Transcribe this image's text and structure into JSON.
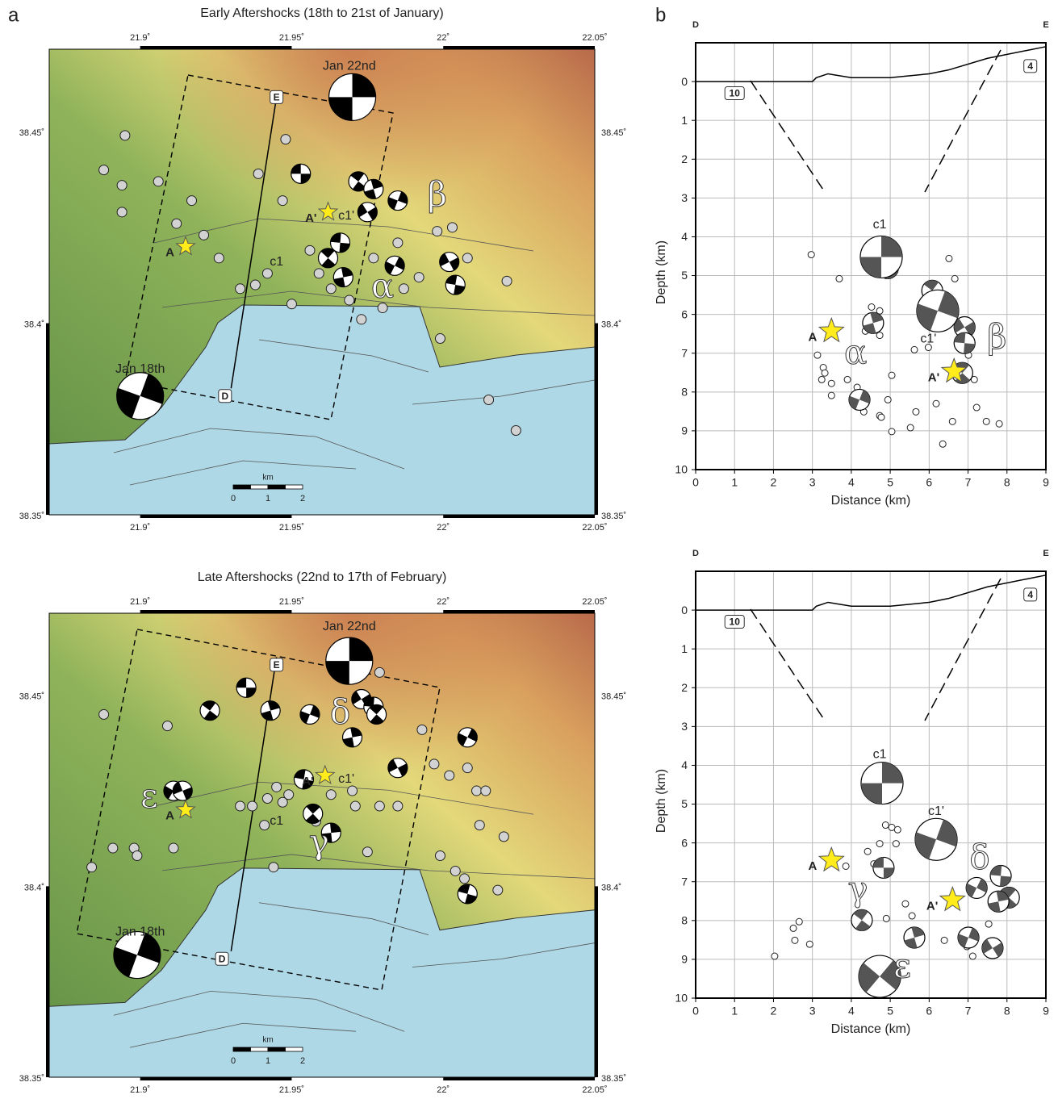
{
  "panels": [
    "a",
    "b"
  ],
  "chart_data": [
    {
      "type": "map",
      "title": "Early Aftershocks (18th to 21st of January)",
      "xlim": [
        21.87,
        22.05
      ],
      "ylim": [
        38.35,
        38.4715
      ],
      "xticks": [
        {
          "value": 21.9,
          "label": "21.9˚"
        },
        {
          "value": 21.95,
          "label": "21.95˚"
        },
        {
          "value": 22,
          "label": "22˚"
        },
        {
          "value": 22.05,
          "label": "22.05˚"
        }
      ],
      "yticks": [
        {
          "value": 38.35,
          "label": "38.35˚"
        },
        {
          "value": 38.4,
          "label": "38.4˚"
        },
        {
          "value": 38.45,
          "label": "38.45˚"
        }
      ],
      "points": {
        "x": [
          21.895,
          21.888,
          21.894,
          21.894,
          21.906,
          21.917,
          21.912,
          21.921,
          21.926,
          21.933,
          21.939,
          21.948,
          21.947,
          21.938,
          21.942,
          21.956,
          21.959,
          21.963,
          21.95,
          21.969,
          21.973,
          21.98,
          21.987,
          21.992,
          21.998,
          22.003,
          22.008,
          21.999,
          22.021,
          22.015,
          22.024,
          21.977,
          21.985
        ],
        "y": [
          38.449,
          38.44,
          38.436,
          38.429,
          38.437,
          38.432,
          38.426,
          38.423,
          38.417,
          38.409,
          38.439,
          38.448,
          38.432,
          38.41,
          38.413,
          38.419,
          38.413,
          38.409,
          38.405,
          38.406,
          38.401,
          38.404,
          38.409,
          38.412,
          38.424,
          38.425,
          38.417,
          38.396,
          38.411,
          38.38,
          38.372,
          38.417,
          38.421
        ]
      },
      "large_mechanisms": {
        "x": [
          21.97,
          21.9
        ],
        "y": [
          38.459,
          38.381
        ]
      },
      "mechanisms": {
        "x": [
          21.953,
          21.972,
          21.977,
          21.985,
          21.975,
          21.966,
          21.962,
          21.967,
          21.984,
          22.002,
          22.004
        ],
        "y": [
          38.439,
          38.437,
          38.435,
          38.432,
          38.429,
          38.421,
          38.417,
          38.412,
          38.415,
          38.416,
          38.41
        ]
      },
      "profile": {
        "x": [
          21.945,
          21.93
        ],
        "y": [
          38.459,
          38.383
        ]
      },
      "labels": [
        {
          "text": "Jan 22nd",
          "x": 21.969,
          "y": 38.467
        },
        {
          "text": "Jan 18th",
          "x": 21.9,
          "y": 38.388
        },
        {
          "text": "c1",
          "x": 21.945,
          "y": 38.416
        },
        {
          "text": "c1'",
          "x": 21.968,
          "y": 38.428
        }
      ],
      "greek": [
        {
          "text": "α",
          "x": 21.98,
          "y": 38.409
        },
        {
          "text": "β",
          "x": 21.998,
          "y": 38.433
        }
      ],
      "boxes": [
        {
          "text": "E",
          "x": 21.945,
          "y": 38.459
        },
        {
          "text": "D",
          "x": 21.928,
          "y": 38.381
        }
      ],
      "stars": [
        {
          "label": "A",
          "x": 21.915,
          "y": 38.42
        },
        {
          "label": "A'",
          "x": 21.962,
          "y": 38.429
        }
      ],
      "scale_bar": {
        "unit": "km",
        "labels": [
          "0",
          "1",
          "2"
        ]
      }
    },
    {
      "type": "section",
      "xlabel": "Distance (km)",
      "ylabel": "Depth (km)",
      "xlim": [
        0,
        9
      ],
      "ylim": [
        10,
        -1
      ],
      "xticks": [
        0,
        1,
        2,
        3,
        4,
        5,
        6,
        7,
        8,
        9
      ],
      "yticks": [
        0,
        1,
        2,
        3,
        4,
        5,
        6,
        7,
        8,
        9,
        10
      ],
      "grid": true,
      "ends": [
        "D",
        "E"
      ],
      "topography": {
        "x": [
          0,
          3,
          3.1,
          3.4,
          4,
          5,
          6,
          6.5,
          7.5,
          8.5,
          9
        ],
        "y": [
          0,
          0,
          -0.1,
          -0.2,
          -0.1,
          -0.1,
          -0.2,
          -0.3,
          -0.6,
          -0.8,
          -0.9
        ]
      },
      "points": {
        "x": [
          2.97,
          3.69,
          4.52,
          4.73,
          4.36,
          4.73,
          3.13,
          3.28,
          3.32,
          3.24,
          3.49,
          3.49,
          3.9,
          4.15,
          4.32,
          4.73,
          4.94,
          5.04,
          4.77,
          5.04,
          5.52,
          5.66,
          5.62,
          5.98,
          6.18,
          6.35,
          6.6,
          7.22,
          7.47,
          7.8,
          6.51,
          6.66,
          7.16,
          7.01
        ],
        "y": [
          4.46,
          5.08,
          5.81,
          5.91,
          6.43,
          6.54,
          7.05,
          7.37,
          7.51,
          7.68,
          7.78,
          8.09,
          7.68,
          7.88,
          8.51,
          8.61,
          8.2,
          7.57,
          8.65,
          9.02,
          8.92,
          8.51,
          6.91,
          6.85,
          8.3,
          9.34,
          8.76,
          8.4,
          8.76,
          8.82,
          4.56,
          5.08,
          7.68,
          7.05
        ]
      },
      "large_mechanisms": {
        "x": [
          4.77,
          6.22
        ],
        "y": [
          4.52,
          5.91
        ]
      },
      "mechanisms": {
        "x": [
          4.94,
          6.08,
          4.56,
          4.21,
          6.91,
          6.91,
          6.85
        ],
        "y": [
          4.81,
          5.39,
          6.22,
          8.2,
          6.33,
          6.74,
          7.51
        ]
      },
      "labels": [
        {
          "text": "c1",
          "x": 4.73,
          "y": 3.69
        },
        {
          "text": "c1'",
          "x": 5.98,
          "y": 6.64
        }
      ],
      "greek": [
        {
          "text": "α",
          "x": 4.11,
          "y": 7.05
        },
        {
          "text": "β",
          "x": 7.74,
          "y": 6.64
        }
      ],
      "boxes": [
        {
          "text": "10",
          "x": 1,
          "y": 0.3
        },
        {
          "text": "4",
          "x": 8.6,
          "y": -0.4
        }
      ],
      "stars": [
        {
          "label": "A",
          "x": 3.49,
          "y": 6.43
        },
        {
          "label": "A'",
          "x": 6.64,
          "y": 7.47
        }
      ]
    },
    {
      "type": "map",
      "title": "Late Aftershocks (22nd to 17th of February)",
      "xlim": [
        21.87,
        22.05
      ],
      "ylim": [
        38.35,
        38.4715
      ],
      "xticks": [
        {
          "value": 21.9,
          "label": "21.9˚"
        },
        {
          "value": 21.95,
          "label": "21.95˚"
        },
        {
          "value": 22,
          "label": "22˚"
        },
        {
          "value": 22.05,
          "label": "22.05˚"
        }
      ],
      "yticks": [
        {
          "value": 38.35,
          "label": "38.35˚"
        },
        {
          "value": 38.4,
          "label": "38.4˚"
        },
        {
          "value": 38.45,
          "label": "38.45˚"
        }
      ],
      "points": {
        "x": [
          21.888,
          21.909,
          21.898,
          21.891,
          21.899,
          21.884,
          21.911,
          21.933,
          21.937,
          21.942,
          21.945,
          21.947,
          21.949,
          21.941,
          21.958,
          21.963,
          21.97,
          21.971,
          21.979,
          21.985,
          21.979,
          21.993,
          21.997,
          22.008,
          22.002,
          22.011,
          22.014,
          22.012,
          22.02,
          21.999,
          22.004,
          22.007,
          22.018,
          21.975,
          21.944
        ],
        "y": [
          38.445,
          38.442,
          38.41,
          38.41,
          38.408,
          38.405,
          38.41,
          38.421,
          38.421,
          38.423,
          38.426,
          38.422,
          38.424,
          38.416,
          38.417,
          38.424,
          38.425,
          38.421,
          38.421,
          38.421,
          38.456,
          38.441,
          38.432,
          38.431,
          38.429,
          38.425,
          38.425,
          38.416,
          38.413,
          38.408,
          38.404,
          38.402,
          38.399,
          38.409,
          38.405
        ]
      },
      "large_mechanisms": {
        "x": [
          21.969,
          21.899
        ],
        "y": [
          38.459,
          38.382
        ]
      },
      "mechanisms": {
        "x": [
          21.935,
          21.923,
          21.943,
          21.956,
          21.973,
          21.977,
          21.978,
          21.97,
          22.008,
          21.985,
          21.954,
          21.957,
          21.963,
          21.911,
          21.914,
          22.008
        ],
        "y": [
          38.452,
          38.446,
          38.446,
          38.445,
          38.449,
          38.447,
          38.445,
          38.439,
          38.439,
          38.431,
          38.428,
          38.419,
          38.414,
          38.425,
          38.425,
          38.398
        ]
      },
      "profile": {
        "x": [
          21.945,
          21.93
        ],
        "y": [
          38.46,
          38.383
        ]
      },
      "labels": [
        {
          "text": "Jan 22nd",
          "x": 21.969,
          "y": 38.468
        },
        {
          "text": "Jan 18th",
          "x": 21.9,
          "y": 38.388
        },
        {
          "text": "c1",
          "x": 21.945,
          "y": 38.417
        },
        {
          "text": "c1'",
          "x": 21.968,
          "y": 38.428
        }
      ],
      "greek": [
        {
          "text": "δ",
          "x": 21.966,
          "y": 38.445
        },
        {
          "text": "ε",
          "x": 21.903,
          "y": 38.423
        },
        {
          "text": "γ",
          "x": 21.959,
          "y": 38.411
        }
      ],
      "boxes": [
        {
          "text": "E",
          "x": 21.945,
          "y": 38.458
        },
        {
          "text": "D",
          "x": 21.927,
          "y": 38.381
        }
      ],
      "stars": [
        {
          "label": "A",
          "x": 21.915,
          "y": 38.42
        },
        {
          "label": "A'",
          "x": 21.961,
          "y": 38.429
        }
      ],
      "scale_bar": {
        "unit": "km",
        "labels": [
          "0",
          "1",
          "2"
        ]
      }
    },
    {
      "type": "section",
      "xlabel": "Distance (km)",
      "ylabel": "Depth (km)",
      "xlim": [
        0,
        9
      ],
      "ylim": [
        10,
        -1
      ],
      "xticks": [
        0,
        1,
        2,
        3,
        4,
        5,
        6,
        7,
        8,
        9
      ],
      "yticks": [
        0,
        1,
        2,
        3,
        4,
        5,
        6,
        7,
        8,
        9,
        10
      ],
      "grid": true,
      "ends": [
        "D",
        "E"
      ],
      "topography": {
        "x": [
          0,
          3,
          3.1,
          3.4,
          4,
          5,
          6,
          6.5,
          7.5,
          8.5,
          9
        ],
        "y": [
          0,
          0,
          -0.1,
          -0.2,
          -0.1,
          -0.1,
          -0.2,
          -0.3,
          -0.6,
          -0.8,
          -0.9
        ]
      },
      "points": {
        "x": [
          2.03,
          2.51,
          2.55,
          2.66,
          2.93,
          4.42,
          4.58,
          4.73,
          4.88,
          5.04,
          5.15,
          5.19,
          4.9,
          5.39,
          5.56,
          6.39,
          6.97,
          7.28,
          7.53,
          7.12,
          3.86
        ],
        "y": [
          8.92,
          8.2,
          8.51,
          8.03,
          8.61,
          6.22,
          6.54,
          6.02,
          5.54,
          5.6,
          6.02,
          5.66,
          7.95,
          7.57,
          7.88,
          8.51,
          8.67,
          7.26,
          8.09,
          8.92,
          6.6
        ]
      },
      "large_mechanisms": {
        "x": [
          4.79,
          6.18,
          4.73
        ],
        "y": [
          4.46,
          5.91,
          9.44
        ]
      },
      "mechanisms": {
        "x": [
          4.83,
          4.27,
          5.62,
          7.01,
          7.63,
          7.84,
          8.05,
          7.78,
          7.22
        ],
        "y": [
          6.64,
          7.99,
          8.44,
          8.44,
          8.71,
          6.85,
          7.41,
          7.51,
          7.16
        ]
      },
      "labels": [
        {
          "text": "c1",
          "x": 4.73,
          "y": 3.73
        },
        {
          "text": "c1'",
          "x": 6.18,
          "y": 5.19
        }
      ],
      "greek": [
        {
          "text": "δ",
          "x": 7.3,
          "y": 6.43
        },
        {
          "text": "γ",
          "x": 4.17,
          "y": 7.26
        },
        {
          "text": "ε",
          "x": 5.31,
          "y": 9.23
        }
      ],
      "boxes": [
        {
          "text": "10",
          "x": 1,
          "y": 0.3
        },
        {
          "text": "4",
          "x": 8.6,
          "y": -0.4
        }
      ],
      "stars": [
        {
          "label": "A",
          "x": 3.49,
          "y": 6.45
        },
        {
          "label": "A'",
          "x": 6.6,
          "y": 7.47
        }
      ]
    }
  ]
}
